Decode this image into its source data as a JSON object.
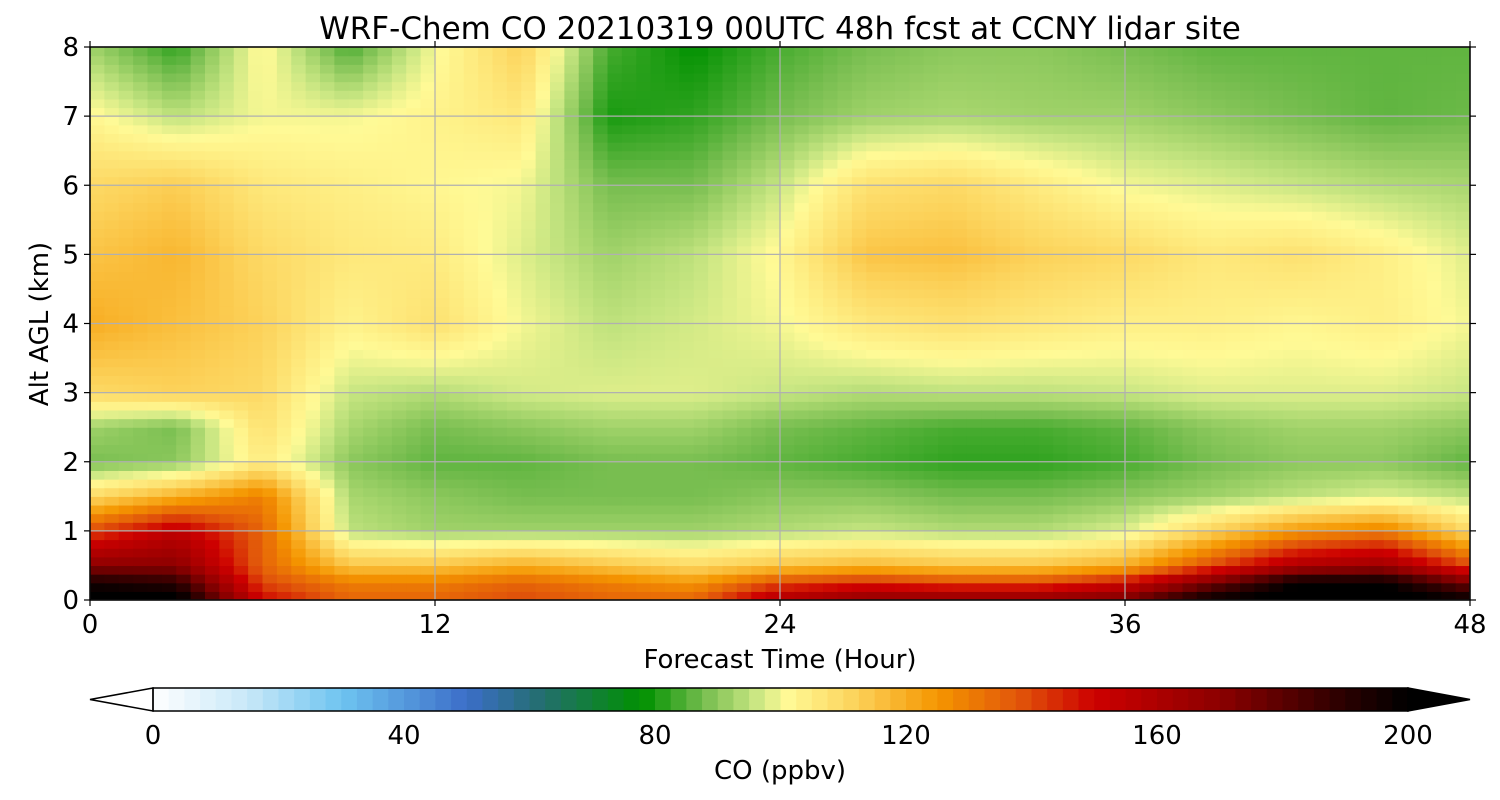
{
  "chart_data": {
    "type": "heatmap",
    "title": "WRF-Chem CO  20210319 00UTC 48h fcst at CCNY lidar site",
    "xlabel": "Forecast Time (Hour)",
    "ylabel": "Alt AGL (km)",
    "xlim": [
      0,
      48
    ],
    "ylim": [
      0,
      8
    ],
    "xticks": [
      0,
      12,
      24,
      36,
      48
    ],
    "yticks": [
      0,
      1,
      2,
      3,
      4,
      5,
      6,
      7,
      8
    ],
    "grid": true,
    "colorbar": {
      "label": "CO  (ppbv)",
      "min": 0,
      "max": 200,
      "ticks": [
        0,
        40,
        80,
        120,
        160,
        200
      ],
      "extend": "both",
      "placement": "bottom"
    },
    "x_hours": [
      0,
      3,
      6,
      9,
      12,
      15,
      18,
      21,
      24,
      27,
      30,
      33,
      36,
      39,
      42,
      45,
      48
    ],
    "y_km": [
      0,
      0.25,
      0.5,
      1,
      1.5,
      2,
      2.5,
      3,
      4,
      5,
      6,
      7,
      8
    ],
    "values_ppbv": [
      [
        205,
        205,
        150,
        135,
        135,
        140,
        135,
        135,
        160,
        170,
        170,
        170,
        175,
        200,
        205,
        205,
        200
      ],
      [
        195,
        190,
        140,
        130,
        130,
        135,
        130,
        125,
        140,
        145,
        140,
        140,
        150,
        175,
        200,
        200,
        175
      ],
      [
        170,
        170,
        135,
        115,
        115,
        120,
        115,
        110,
        115,
        118,
        115,
        115,
        120,
        140,
        160,
        165,
        140
      ],
      [
        140,
        155,
        135,
        95,
        92,
        92,
        92,
        92,
        94,
        96,
        94,
        94,
        98,
        112,
        125,
        130,
        110
      ],
      [
        110,
        120,
        130,
        93,
        90,
        88,
        88,
        88,
        90,
        90,
        88,
        88,
        90,
        92,
        95,
        98,
        95
      ],
      [
        88,
        90,
        105,
        90,
        86,
        86,
        88,
        88,
        86,
        84,
        82,
        82,
        84,
        88,
        90,
        90,
        86
      ],
      [
        92,
        88,
        108,
        93,
        88,
        90,
        92,
        92,
        88,
        86,
        84,
        84,
        86,
        90,
        92,
        92,
        90
      ],
      [
        110,
        112,
        110,
        96,
        94,
        97,
        98,
        98,
        96,
        94,
        95,
        95,
        96,
        98,
        98,
        98,
        96
      ],
      [
        120,
        116,
        112,
        103,
        108,
        100,
        95,
        97,
        100,
        106,
        108,
        106,
        104,
        104,
        102,
        104,
        100
      ],
      [
        115,
        118,
        110,
        106,
        105,
        98,
        92,
        95,
        102,
        115,
        116,
        112,
        110,
        106,
        108,
        104,
        98
      ],
      [
        110,
        113,
        106,
        104,
        102,
        100,
        88,
        88,
        96,
        108,
        110,
        105,
        100,
        98,
        96,
        94,
        93
      ],
      [
        102,
        95,
        100,
        100,
        103,
        106,
        80,
        82,
        88,
        92,
        93,
        92,
        92,
        90,
        88,
        86,
        87
      ],
      [
        92,
        82,
        102,
        84,
        100,
        112,
        84,
        78,
        84,
        88,
        90,
        90,
        88,
        86,
        86,
        86,
        86
      ]
    ]
  }
}
